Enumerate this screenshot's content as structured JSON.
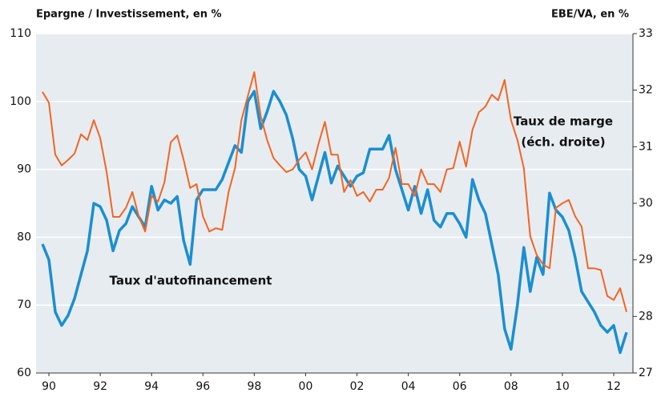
{
  "chart_data": {
    "type": "line",
    "y_label": "Epargne / Investissement, en %",
    "y2_label": "EBE/VA, en %",
    "annotation": "(éch. droite)",
    "x": [
      1990.25,
      1990.5,
      1990.75,
      1991,
      1991.25,
      1991.5,
      1991.75,
      1992,
      1992.25,
      1992.5,
      1992.75,
      1993,
      1993.25,
      1993.5,
      1993.75,
      1994,
      1994.25,
      1994.5,
      1994.75,
      1995,
      1995.25,
      1995.5,
      1995.75,
      1996,
      1996.25,
      1996.5,
      1996.75,
      1997,
      1997.25,
      1997.5,
      1997.75,
      1998,
      1998.25,
      1998.5,
      1998.75,
      1999,
      1999.25,
      1999.5,
      1999.75,
      2000,
      2000.25,
      2000.5,
      2000.75,
      2001,
      2001.25,
      2001.5,
      2001.75,
      2002,
      2002.25,
      2002.5,
      2002.75,
      2003,
      2003.25,
      2003.5,
      2003.75,
      2004,
      2004.25,
      2004.5,
      2004.75,
      2005,
      2005.25,
      2005.5,
      2005.75,
      2006,
      2006.25,
      2006.5,
      2006.75,
      2007,
      2007.25,
      2007.5,
      2007.75,
      2008,
      2008.25,
      2008.5,
      2008.75,
      2009,
      2009.25,
      2009.5,
      2009.75,
      2010,
      2010.25,
      2010.5,
      2010.75,
      2011,
      2011.25,
      2011.5,
      2011.75,
      2012,
      2012.25,
      2012.5,
      2012.75,
      2013
    ],
    "series": [
      {
        "name": "Taux d'autofinancement",
        "color": "#1a8fd0",
        "values": [
          79,
          76.7,
          69,
          67,
          68.5,
          71,
          74.5,
          78,
          85,
          84.5,
          82.5,
          78,
          81,
          82,
          84.5,
          83,
          81.5,
          87.5,
          84,
          85.5,
          85,
          86,
          79.5,
          76,
          85.5,
          87,
          87,
          87,
          88.5,
          91,
          93.5,
          92.5,
          100,
          101.5,
          96,
          98.5,
          101.5,
          100,
          98,
          94.5,
          90,
          89,
          85.5,
          89,
          92.5,
          88,
          90.5,
          89,
          87.5,
          89,
          89.5,
          93,
          93,
          93,
          95,
          90,
          87,
          84,
          87.5,
          83.5,
          87,
          82.5,
          81.5,
          83.5,
          83.5,
          82,
          80,
          88.5,
          85.5,
          83.5,
          79,
          74.5,
          66.5,
          63.5,
          70,
          78.5,
          72,
          77,
          74.5,
          86.5,
          84,
          83,
          81,
          77,
          72,
          70.5,
          69,
          67,
          66,
          67,
          63,
          66
        ]
      },
      {
        "name": "Taux de marge",
        "color": "#f26522",
        "axis": "y2",
        "values": [
          31.97,
          31.78,
          30.86,
          30.67,
          30.77,
          30.88,
          31.22,
          31.12,
          31.47,
          31.15,
          30.55,
          29.76,
          29.76,
          29.92,
          30.2,
          29.77,
          29.5,
          30.13,
          30.03,
          30.37,
          31.08,
          31.2,
          30.77,
          30.27,
          30.34,
          29.77,
          29.5,
          29.56,
          29.53,
          30.2,
          30.62,
          31.47,
          31.9,
          32.32,
          31.54,
          31.12,
          30.8,
          30.67,
          30.55,
          30.6,
          30.77,
          30.9,
          30.6,
          31.05,
          31.44,
          30.86,
          30.86,
          30.2,
          30.41,
          30.13,
          30.2,
          30.03,
          30.24,
          30.24,
          30.45,
          30.98,
          30.34,
          30.34,
          30.13,
          30.6,
          30.34,
          30.34,
          30.2,
          30.6,
          30.62,
          31.09,
          30.65,
          31.3,
          31.61,
          31.71,
          31.92,
          31.82,
          32.18,
          31.47,
          31.12,
          30.62,
          29.42,
          29.09,
          28.92,
          28.85,
          29.92,
          30.0,
          30.06,
          29.77,
          29.59,
          28.85,
          28.85,
          28.82,
          28.36,
          28.29,
          28.5,
          28.08
        ]
      }
    ],
    "xlim": [
      1990,
      2013.25
    ],
    "xticks": [
      {
        "value": 1990.5,
        "label": "90"
      },
      {
        "value": 1992.5,
        "label": "92"
      },
      {
        "value": 1994.5,
        "label": "94"
      },
      {
        "value": 1996.5,
        "label": "96"
      },
      {
        "value": 1998.5,
        "label": "98"
      },
      {
        "value": 2000.5,
        "label": "00"
      },
      {
        "value": 2002.5,
        "label": "02"
      },
      {
        "value": 2004.5,
        "label": "04"
      },
      {
        "value": 2006.5,
        "label": "06"
      },
      {
        "value": 2008.5,
        "label": "08"
      },
      {
        "value": 2010.5,
        "label": "10"
      },
      {
        "value": 2012.5,
        "label": "12"
      }
    ],
    "ylim": [
      60,
      110
    ],
    "yticks": [
      60,
      70,
      80,
      90,
      100,
      110
    ],
    "y2lim": [
      27,
      33
    ],
    "y2ticks": [
      27,
      28,
      29,
      30,
      31,
      32,
      33
    ],
    "grid": true
  }
}
